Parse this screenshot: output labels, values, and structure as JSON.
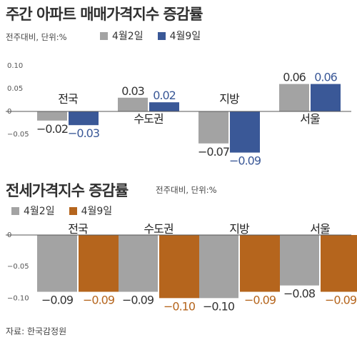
{
  "chart_data": [
    {
      "type": "bar",
      "title": "주간 아파트 매매가격지수 증감률",
      "unit_note": "전주대비, 단위:%",
      "categories": [
        "전국",
        "수도권",
        "지방",
        "서울"
      ],
      "series": [
        {
          "name": "4월2일",
          "values": [
            -0.02,
            0.03,
            -0.07,
            0.06
          ],
          "labels": [
            "−0.02",
            "0.03",
            "−0.07",
            "0.06"
          ],
          "color": "#a3a3a3",
          "label_color": "#333333"
        },
        {
          "name": "4월9일",
          "values": [
            -0.03,
            0.02,
            -0.09,
            0.06
          ],
          "labels": [
            "−0.03",
            "0.02",
            "−0.09",
            "0.06"
          ],
          "color": "#3a5897",
          "label_color": "#3a5897"
        }
      ],
      "ylim": [
        -0.1,
        0.1
      ],
      "yticks": [
        0.1,
        0.05,
        0,
        -0.05
      ],
      "ytick_labels": [
        "0.10",
        "0.05",
        "0",
        "−0.05"
      ],
      "grid": false,
      "legend": "top-left"
    },
    {
      "type": "bar",
      "title": "전세가격지수 증감률",
      "unit_note": "전주대비, 단위:%",
      "categories": [
        "전국",
        "수도권",
        "지방",
        "서울"
      ],
      "series": [
        {
          "name": "4월2일",
          "values": [
            -0.09,
            -0.09,
            -0.1,
            -0.08
          ],
          "labels": [
            "−0.09",
            "−0.09",
            "−0.10",
            "−0.08"
          ],
          "color": "#a3a3a3",
          "label_color": "#333333"
        },
        {
          "name": "4월9일",
          "values": [
            -0.09,
            -0.1,
            -0.09,
            -0.09
          ],
          "labels": [
            "−0.09",
            "−0.10",
            "−0.09",
            "−0.09"
          ],
          "color": "#b5651d",
          "label_color": "#b5651d"
        }
      ],
      "ylim": [
        -0.12,
        0
      ],
      "yticks": [
        0,
        -0.05,
        -0.1
      ],
      "ytick_labels": [
        "0",
        "−0.05",
        "−0.10"
      ],
      "grid": false,
      "legend": "top-left"
    }
  ],
  "source": "자료: 한국감정원"
}
